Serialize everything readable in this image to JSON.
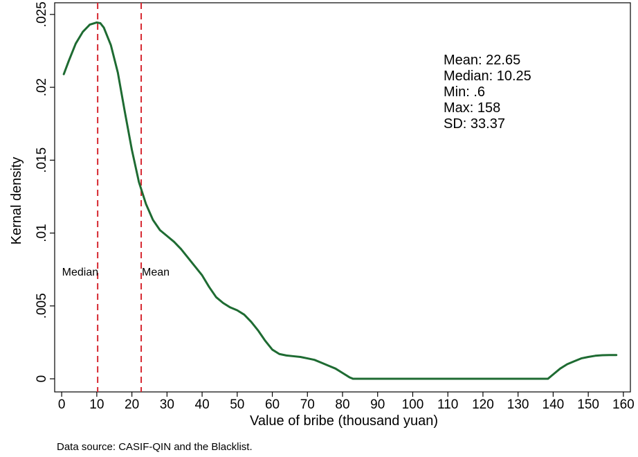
{
  "chart_data": {
    "type": "line",
    "title": "",
    "xlabel": "Value of bribe (thousand yuan)",
    "ylabel": "Kernal density",
    "xlim": [
      -2,
      162
    ],
    "ylim": [
      -0.0009,
      0.0258
    ],
    "x_ticks": [
      0,
      10,
      20,
      30,
      40,
      50,
      60,
      70,
      80,
      90,
      100,
      110,
      120,
      130,
      140,
      150,
      160
    ],
    "x_tick_labels": [
      "0",
      "10",
      "20",
      "30",
      "40",
      "50",
      "60",
      "70",
      "80",
      "90",
      "100",
      "110",
      "120",
      "130",
      "140",
      "150",
      "160"
    ],
    "y_ticks": [
      0,
      0.005,
      0.01,
      0.015,
      0.02,
      0.025
    ],
    "y_tick_labels": [
      "0",
      ".005",
      ".01",
      ".015",
      ".02",
      ".025"
    ],
    "grid": false,
    "series": [
      {
        "color": "#1e6b32",
        "x": [
          0.6,
          2,
          4,
          6,
          8,
          10,
          11,
          12,
          14,
          16,
          18,
          20,
          22,
          24,
          26,
          28,
          30,
          32,
          34,
          36,
          38,
          40,
          42,
          44,
          46,
          48,
          50,
          52,
          54,
          56,
          58,
          60,
          62,
          64,
          66,
          68,
          70,
          72,
          74,
          76,
          78,
          80,
          82,
          83,
          90,
          100,
          110,
          120,
          130,
          138.5,
          140,
          142,
          144,
          146,
          148,
          150,
          152,
          154,
          156,
          158
        ],
        "y": [
          0.0209,
          0.0218,
          0.023,
          0.0238,
          0.0243,
          0.02445,
          0.0244,
          0.0241,
          0.0229,
          0.021,
          0.0183,
          0.0157,
          0.0135,
          0.012,
          0.0109,
          0.0102,
          0.0098,
          0.0094,
          0.0089,
          0.0083,
          0.0077,
          0.0071,
          0.0063,
          0.0056,
          0.0052,
          0.0049,
          0.0047,
          0.0044,
          0.0039,
          0.0033,
          0.0026,
          0.002,
          0.0017,
          0.0016,
          0.00155,
          0.0015,
          0.0014,
          0.0013,
          0.0011,
          0.0009,
          0.0007,
          0.0004,
          0.0001,
          0.0,
          0.0,
          0.0,
          0.0,
          0.0,
          0.0,
          0.0,
          0.0003,
          0.0007,
          0.001,
          0.0012,
          0.0014,
          0.0015,
          0.00158,
          0.00162,
          0.00163,
          0.00163
        ]
      }
    ],
    "reference_lines": [
      {
        "label": "Median",
        "x": 10.25,
        "color": "#d6262f"
      },
      {
        "label": "Mean",
        "x": 22.65,
        "color": "#d6262f"
      }
    ],
    "annotation_box": {
      "lines": [
        "Mean: 22.65",
        "Median: 10.25",
        "Min: .6",
        "Max: 158",
        "SD: 33.37"
      ]
    },
    "footnote": "Data source: CASIF-QIN and the Blacklist."
  }
}
